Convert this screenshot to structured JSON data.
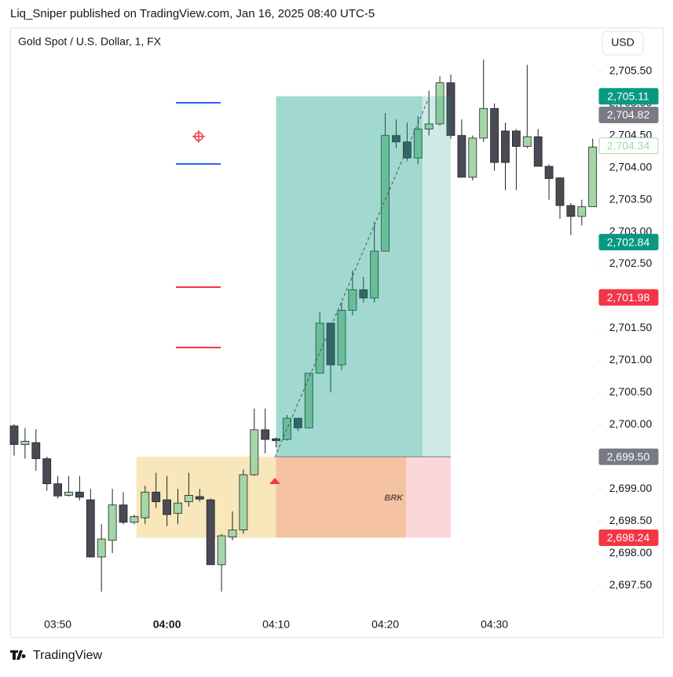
{
  "header": {
    "publisher": "Liq_Sniper published on TradingView.com, Jan 16, 2025 08:40 UTC-5",
    "symbol": "Gold Spot / U.S. Dollar, 1, FX",
    "currency": "USD",
    "brand": "TradingView"
  },
  "chart_data": {
    "type": "candlestick",
    "categories": [
      null,
      null,
      null,
      null,
      "03:50",
      null,
      null,
      null,
      null,
      null,
      null,
      null,
      null,
      null,
      "04:00",
      null,
      null,
      null,
      null,
      null,
      null,
      null,
      null,
      null,
      "04:10",
      null,
      null,
      null,
      null,
      null,
      null,
      null,
      null,
      null,
      "04:20",
      null,
      null,
      null,
      null,
      null,
      null,
      null,
      null,
      null,
      "04:30",
      null,
      null,
      null,
      null,
      null,
      null,
      null,
      null,
      null
    ],
    "open": [
      2699.98,
      2699.69,
      2699.72,
      2699.47,
      2699.08,
      2698.9,
      2698.95,
      2698.83,
      2697.94,
      2698.2,
      2698.75,
      2698.48,
      2698.55,
      2698.95,
      2698.83,
      2698.62,
      2698.8,
      2698.88,
      2698.83,
      2697.82,
      2698.25,
      2698.36,
      2699.22,
      2699.92,
      2699.78,
      2699.77,
      2700.1,
      2699.95,
      2700.8,
      2701.58,
      2700.93,
      2701.78,
      2702.1,
      2701.97,
      2702.7,
      2704.5,
      2704.4,
      2704.15,
      2704.6,
      2704.68,
      2705.32,
      2704.5,
      2703.85,
      2704.46,
      2704.92,
      2704.57,
      2704.57,
      2704.33,
      2704.48,
      2704.02,
      2703.84,
      2703.41,
      2703.24,
      2703.39
    ],
    "high": [
      2700.01,
      2699.95,
      2699.93,
      2699.5,
      2699.2,
      2699.2,
      2699.2,
      2699.0,
      2698.45,
      2699.0,
      2698.95,
      2698.6,
      2699.05,
      2699.25,
      2699.2,
      2699.0,
      2699.25,
      2699.0,
      2698.85,
      2698.3,
      2698.65,
      2699.3,
      2700.25,
      2700.25,
      2699.8,
      2700.15,
      2700.1,
      2700.8,
      2701.75,
      2701.58,
      2701.9,
      2702.4,
      2702.3,
      2703.15,
      2704.85,
      2704.75,
      2704.7,
      2704.8,
      2705.2,
      2705.42,
      2705.45,
      2704.75,
      2704.5,
      2705.68,
      2705.0,
      2704.7,
      2704.6,
      2705.6,
      2704.6,
      2704.05,
      2703.85,
      2703.45,
      2703.5,
      2704.45
    ],
    "low": [
      2699.52,
      2699.47,
      2699.28,
      2698.97,
      2698.85,
      2698.88,
      2698.82,
      2697.94,
      2697.4,
      2698.0,
      2698.45,
      2698.45,
      2698.45,
      2698.7,
      2698.42,
      2698.45,
      2698.72,
      2698.8,
      2697.82,
      2697.4,
      2698.2,
      2698.3,
      2699.2,
      2699.55,
      2699.65,
      2699.75,
      2699.9,
      2699.95,
      2700.8,
      2700.5,
      2700.85,
      2701.7,
      2701.9,
      2701.9,
      2702.7,
      2704.3,
      2704.1,
      2704.05,
      2704.5,
      2704.65,
      2704.45,
      2703.85,
      2703.8,
      2704.4,
      2703.95,
      2703.65,
      2703.65,
      2704.3,
      2704.02,
      2703.5,
      2703.2,
      2702.95,
      2703.1,
      2703.39
    ],
    "close": [
      2699.69,
      2699.74,
      2699.47,
      2699.08,
      2698.89,
      2698.95,
      2698.87,
      2697.94,
      2698.22,
      2698.75,
      2698.48,
      2698.57,
      2698.95,
      2698.8,
      2698.6,
      2698.78,
      2698.9,
      2698.84,
      2697.82,
      2698.27,
      2698.36,
      2699.22,
      2699.92,
      2699.77,
      2699.75,
      2700.1,
      2699.95,
      2700.8,
      2701.58,
      2700.93,
      2701.78,
      2702.1,
      2701.97,
      2702.7,
      2704.5,
      2704.4,
      2704.15,
      2704.6,
      2704.68,
      2705.32,
      2704.5,
      2703.85,
      2704.46,
      2704.92,
      2704.08,
      2704.08,
      2704.33,
      2704.48,
      2704.02,
      2703.83,
      2703.41,
      2703.24,
      2703.39,
      2704.32
    ],
    "up_color": "#a5d6a7",
    "down_color": "#4a4a55",
    "ylim": [
      2697.11,
      2706.12
    ],
    "yticks": [
      {
        "value": 2697.5,
        "label": "2,697.50"
      },
      {
        "value": 2698,
        "label": "2,698.00"
      },
      {
        "value": 2698.5,
        "label": "2,698.50"
      },
      {
        "value": 2699,
        "label": "2,699.00"
      },
      {
        "value": 2699.5,
        "label": "2,699.50"
      },
      {
        "value": 2700,
        "label": "2,700.00"
      },
      {
        "value": 2700.5,
        "label": "2,700.50"
      },
      {
        "value": 2701,
        "label": "2,701.00"
      },
      {
        "value": 2701.5,
        "label": "2,701.50"
      },
      {
        "value": 2702,
        "label": "2,702.00"
      },
      {
        "value": 2702.5,
        "label": "2,702.50"
      },
      {
        "value": 2703,
        "label": "2,703.00"
      },
      {
        "value": 2703.5,
        "label": "2,703.50"
      },
      {
        "value": 2704,
        "label": "2,704.00"
      },
      {
        "value": 2704.5,
        "label": "2,704.50"
      },
      {
        "value": 2705,
        "label": "2,705.00"
      },
      {
        "value": 2705.5,
        "label": "2,705.50"
      }
    ],
    "price_labels": [
      {
        "value": 2705.11,
        "label": "2,705.11",
        "color": "#089981"
      },
      {
        "value": 2704.82,
        "label": "2,704.82",
        "color": "#787b86"
      },
      {
        "value": 2704.34,
        "label": "2,704.34",
        "color": "#a5d6a7"
      },
      {
        "value": 2702.84,
        "label": "2,702.84",
        "color": "#089981"
      },
      {
        "value": 2701.98,
        "label": "2,701.98",
        "color": "#f23645"
      },
      {
        "value": 2699.5,
        "label": "2,699.50",
        "color": "#787b86"
      },
      {
        "value": 2698.24,
        "label": "2,698.24",
        "color": "#f23645"
      }
    ],
    "annotation": "BRK"
  }
}
